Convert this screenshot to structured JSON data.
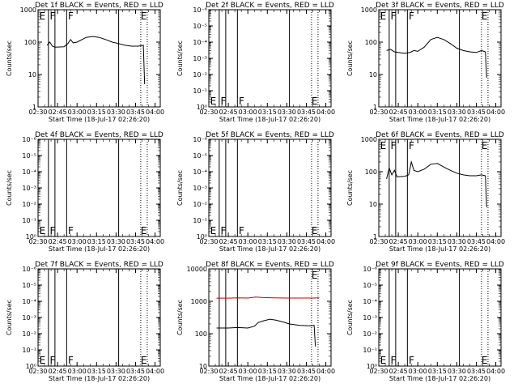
{
  "chart_data": {
    "type": "line",
    "x_ticks": [
      "02:30",
      "02:45",
      "03:00",
      "03:15",
      "03:30",
      "03:45",
      "04:00"
    ],
    "xlabel": "Start Time (18-Jul-17 02:26:20)",
    "ylabel": "Counts/sec",
    "panels": [
      {
        "title": "Det 1f BLACK = Events, RED = LLD",
        "y_scale": "log",
        "ylim": [
          1,
          1000
        ],
        "y_ticks": [
          "1",
          "10",
          "100",
          "1000"
        ],
        "solid_lines": [
          "02:38",
          "02:43",
          "02:52",
          "03:32"
        ],
        "dotted_lines": [
          "03:49",
          "03:54"
        ],
        "markers": [
          {
            "label": "E",
            "x": "02:31",
            "pos": "top"
          },
          {
            "label": "F",
            "x": "02:39",
            "pos": "top"
          },
          {
            "label": "F",
            "x": "02:53",
            "pos": "top"
          },
          {
            "label": "E",
            "x": "03:49",
            "pos": "top"
          }
        ],
        "series": [
          {
            "color": "#000000",
            "points": [
              [
                "02:37",
                80
              ],
              [
                "02:39",
                100
              ],
              [
                "02:41",
                75
              ],
              [
                "02:43",
                70
              ],
              [
                "02:50",
                72
              ],
              [
                "02:53",
                90
              ],
              [
                "02:55",
                120
              ],
              [
                "02:57",
                95
              ],
              [
                "03:00",
                100
              ],
              [
                "03:07",
                140
              ],
              [
                "03:12",
                150
              ],
              [
                "03:17",
                140
              ],
              [
                "03:22",
                120
              ],
              [
                "03:27",
                100
              ],
              [
                "03:32",
                90
              ],
              [
                "03:37",
                80
              ],
              [
                "03:42",
                75
              ],
              [
                "03:47",
                75
              ],
              [
                "03:51",
                80
              ],
              [
                "03:52",
                5
              ]
            ]
          }
        ]
      },
      {
        "title": "Det 2f BLACK = Events, RED = LLD",
        "y_scale": "log",
        "ylim": [
          1,
          1000000
        ],
        "y_ticks": [
          "10⁰",
          "10⁻¹",
          "10⁻²",
          "10⁻³",
          "10⁻⁴",
          "10⁻⁵",
          "10⁻⁶"
        ],
        "solid_lines": [
          "02:38",
          "02:43",
          "02:52",
          "03:32"
        ],
        "dotted_lines": [
          "03:49",
          "03:54"
        ],
        "markers": [
          {
            "label": "E",
            "x": "02:31",
            "pos": "bottom"
          },
          {
            "label": "F",
            "x": "02:39",
            "pos": "bottom"
          },
          {
            "label": "F",
            "x": "02:53",
            "pos": "bottom"
          },
          {
            "label": "E",
            "x": "03:49",
            "pos": "bottom"
          }
        ],
        "series": []
      },
      {
        "title": "Det 3f BLACK = Events, RED = LLD",
        "y_scale": "log",
        "ylim": [
          1,
          1000
        ],
        "y_ticks": [
          "1",
          "10",
          "100",
          "1000"
        ],
        "solid_lines": [
          "02:38",
          "02:43",
          "02:52",
          "03:32"
        ],
        "dotted_lines": [
          "03:49",
          "03:54"
        ],
        "markers": [
          {
            "label": "E",
            "x": "02:31",
            "pos": "top"
          },
          {
            "label": "F",
            "x": "02:39",
            "pos": "top"
          },
          {
            "label": "F",
            "x": "02:53",
            "pos": "top"
          },
          {
            "label": "E",
            "x": "03:49",
            "pos": "top"
          }
        ],
        "series": [
          {
            "color": "#000000",
            "points": [
              [
                "02:36",
                55
              ],
              [
                "02:39",
                60
              ],
              [
                "02:42",
                50
              ],
              [
                "02:45",
                48
              ],
              [
                "02:50",
                45
              ],
              [
                "02:54",
                48
              ],
              [
                "02:57",
                55
              ],
              [
                "03:00",
                52
              ],
              [
                "03:05",
                70
              ],
              [
                "03:10",
                120
              ],
              [
                "03:15",
                140
              ],
              [
                "03:20",
                120
              ],
              [
                "03:25",
                90
              ],
              [
                "03:30",
                65
              ],
              [
                "03:35",
                55
              ],
              [
                "03:40",
                50
              ],
              [
                "03:45",
                48
              ],
              [
                "03:49",
                55
              ],
              [
                "03:52",
                50
              ],
              [
                "03:53",
                8
              ]
            ]
          }
        ]
      },
      {
        "title": "Det 4f BLACK = Events, RED = LLD",
        "y_scale": "log",
        "ylim": [
          1,
          1000000
        ],
        "y_ticks": [
          "10⁰",
          "10⁻¹",
          "10⁻²",
          "10⁻³",
          "10⁻⁴",
          "10⁻⁵",
          "10⁻⁶"
        ],
        "solid_lines": [
          "02:38",
          "02:43",
          "02:52",
          "03:32"
        ],
        "dotted_lines": [
          "03:49",
          "03:54"
        ],
        "markers": [
          {
            "label": "E",
            "x": "02:31",
            "pos": "bottom"
          },
          {
            "label": "F",
            "x": "02:39",
            "pos": "bottom"
          },
          {
            "label": "F",
            "x": "02:53",
            "pos": "bottom"
          },
          {
            "label": "E",
            "x": "03:49",
            "pos": "bottom"
          }
        ],
        "series": []
      },
      {
        "title": "Det 5f BLACK = Events, RED = LLD",
        "y_scale": "log",
        "ylim": [
          1,
          1000000
        ],
        "y_ticks": [
          "10⁰",
          "10⁻¹",
          "10⁻²",
          "10⁻³",
          "10⁻⁴",
          "10⁻⁵",
          "10⁻⁶"
        ],
        "solid_lines": [
          "02:38",
          "02:43",
          "02:52",
          "03:32"
        ],
        "dotted_lines": [
          "03:49",
          "03:54"
        ],
        "markers": [
          {
            "label": "E",
            "x": "02:31",
            "pos": "bottom"
          },
          {
            "label": "F",
            "x": "02:39",
            "pos": "bottom"
          },
          {
            "label": "F",
            "x": "02:53",
            "pos": "bottom"
          },
          {
            "label": "E",
            "x": "03:49",
            "pos": "bottom"
          }
        ],
        "series": []
      },
      {
        "title": "Det 6f BLACK = Events, RED = LLD",
        "y_scale": "log",
        "ylim": [
          1,
          1000
        ],
        "y_ticks": [
          "1",
          "10",
          "100",
          "1000"
        ],
        "solid_lines": [
          "02:38",
          "02:43",
          "02:52",
          "03:32"
        ],
        "dotted_lines": [
          "03:49",
          "03:54"
        ],
        "markers": [
          {
            "label": "E",
            "x": "02:31",
            "pos": "top"
          },
          {
            "label": "F",
            "x": "02:39",
            "pos": "top"
          },
          {
            "label": "F",
            "x": "02:53",
            "pos": "top"
          },
          {
            "label": "E",
            "x": "03:49",
            "pos": "top"
          }
        ],
        "series": [
          {
            "color": "#000000",
            "points": [
              [
                "02:36",
                60
              ],
              [
                "02:38",
                130
              ],
              [
                "02:40",
                80
              ],
              [
                "02:42",
                110
              ],
              [
                "02:44",
                70
              ],
              [
                "02:50",
                72
              ],
              [
                "02:53",
                80
              ],
              [
                "02:55",
                200
              ],
              [
                "02:57",
                110
              ],
              [
                "03:00",
                100
              ],
              [
                "03:05",
                120
              ],
              [
                "03:10",
                170
              ],
              [
                "03:15",
                180
              ],
              [
                "03:20",
                140
              ],
              [
                "03:25",
                110
              ],
              [
                "03:30",
                90
              ],
              [
                "03:35",
                80
              ],
              [
                "03:40",
                75
              ],
              [
                "03:45",
                75
              ],
              [
                "03:49",
                80
              ],
              [
                "03:52",
                75
              ],
              [
                "03:53",
                8
              ]
            ]
          }
        ]
      },
      {
        "title": "Det 7f BLACK = Events, RED = LLD",
        "y_scale": "log",
        "ylim": [
          1,
          1000000
        ],
        "y_ticks": [
          "10⁰",
          "10⁻¹",
          "10⁻²",
          "10⁻³",
          "10⁻⁴",
          "10⁻⁵",
          "10⁻⁶"
        ],
        "solid_lines": [
          "02:38",
          "02:43",
          "02:52",
          "03:32"
        ],
        "dotted_lines": [
          "03:49",
          "03:54"
        ],
        "markers": [
          {
            "label": "E",
            "x": "02:31",
            "pos": "bottom"
          },
          {
            "label": "F",
            "x": "02:39",
            "pos": "bottom"
          },
          {
            "label": "F",
            "x": "02:53",
            "pos": "bottom"
          },
          {
            "label": "E",
            "x": "03:49",
            "pos": "bottom"
          }
        ],
        "series": []
      },
      {
        "title": "Det 8f BLACK = Events, RED = LLD",
        "y_scale": "log",
        "ylim": [
          10,
          10000
        ],
        "y_ticks": [
          "10",
          "100",
          "1000",
          "10000"
        ],
        "solid_lines": [
          "02:38",
          "02:43",
          "02:52",
          "03:32"
        ],
        "dotted_lines": [
          "03:49",
          "03:54"
        ],
        "markers": [
          {
            "label": "E",
            "x": "03:49",
            "pos": "top"
          }
        ],
        "series": [
          {
            "color": "#cc0000",
            "points": [
              [
                "02:36",
                1250
              ],
              [
                "02:45",
                1250
              ],
              [
                "02:52",
                1270
              ],
              [
                "03:00",
                1260
              ],
              [
                "03:06",
                1350
              ],
              [
                "03:12",
                1300
              ],
              [
                "03:20",
                1280
              ],
              [
                "03:30",
                1260
              ],
              [
                "03:40",
                1260
              ],
              [
                "03:50",
                1260
              ],
              [
                "03:55",
                1270
              ]
            ]
          },
          {
            "color": "#000000",
            "points": [
              [
                "02:36",
                150
              ],
              [
                "02:45",
                150
              ],
              [
                "02:52",
                155
              ],
              [
                "03:00",
                150
              ],
              [
                "03:05",
                170
              ],
              [
                "03:08",
                220
              ],
              [
                "03:12",
                250
              ],
              [
                "03:17",
                280
              ],
              [
                "03:22",
                260
              ],
              [
                "03:27",
                230
              ],
              [
                "03:32",
                200
              ],
              [
                "03:40",
                180
              ],
              [
                "03:47",
                175
              ],
              [
                "03:51",
                180
              ],
              [
                "03:52",
                40
              ]
            ]
          }
        ]
      },
      {
        "title": "Det 9f BLACK = Events, RED = LLD",
        "y_scale": "log",
        "ylim": [
          1,
          1000000
        ],
        "y_ticks": [
          "10⁰",
          "10⁻¹",
          "10⁻²",
          "10⁻³",
          "10⁻⁴",
          "10⁻⁵",
          "10⁻⁶"
        ],
        "solid_lines": [
          "02:38",
          "02:43",
          "02:52",
          "03:32"
        ],
        "dotted_lines": [
          "03:49",
          "03:54"
        ],
        "markers": [
          {
            "label": "E",
            "x": "02:31",
            "pos": "bottom"
          },
          {
            "label": "F",
            "x": "02:39",
            "pos": "bottom"
          },
          {
            "label": "F",
            "x": "02:53",
            "pos": "bottom"
          },
          {
            "label": "E",
            "x": "03:49",
            "pos": "bottom"
          }
        ],
        "series": []
      }
    ]
  }
}
